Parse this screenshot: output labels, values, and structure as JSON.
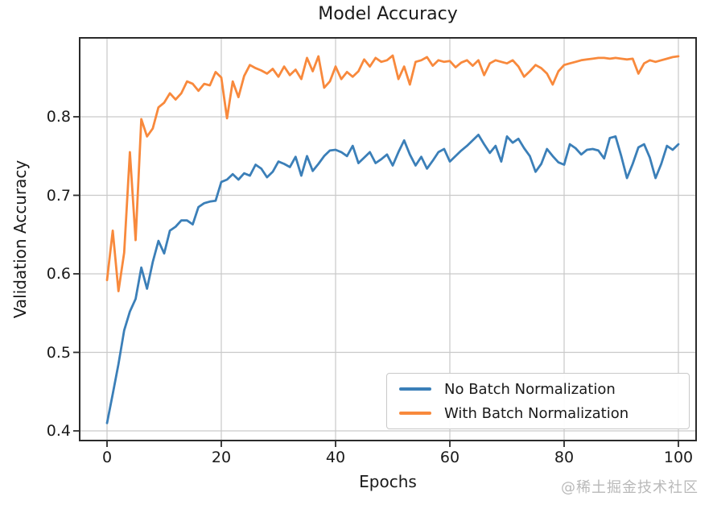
{
  "watermark": "@稀土掘金技术社区",
  "chart_data": {
    "type": "line",
    "title": "Model Accuracy",
    "xlabel": "Epochs",
    "ylabel": "Validation Accuracy",
    "x_ticks": [
      0,
      20,
      40,
      60,
      80,
      100
    ],
    "x_tick_labels": [
      "0",
      "20",
      "40",
      "60",
      "80",
      "100"
    ],
    "y_ticks": [
      0.8,
      0.7,
      0.6,
      0.5,
      0.4
    ],
    "y_tick_labels": [
      "0.8",
      "0.7",
      "0.6",
      "0.5",
      "0.4"
    ],
    "xlim": [
      -4.9,
      103.2
    ],
    "ylim": [
      0.387,
      0.902
    ],
    "grid": true,
    "legend_position": "lower right",
    "colors": {
      "grid": "#c9c9c9",
      "spine": "#2b2b2b",
      "text": "#1a1a1a",
      "watermark": "#b9b9b9"
    },
    "x": [
      0,
      1,
      2,
      3,
      4,
      5,
      6,
      7,
      8,
      9,
      10,
      11,
      12,
      13,
      14,
      15,
      16,
      17,
      18,
      19,
      20,
      21,
      22,
      23,
      24,
      25,
      26,
      27,
      28,
      29,
      30,
      31,
      32,
      33,
      34,
      35,
      36,
      37,
      38,
      39,
      40,
      41,
      42,
      43,
      44,
      45,
      46,
      47,
      48,
      49,
      50,
      51,
      52,
      53,
      54,
      55,
      56,
      57,
      58,
      59,
      60,
      61,
      62,
      63,
      64,
      65,
      66,
      67,
      68,
      69,
      70,
      71,
      72,
      73,
      74,
      75,
      76,
      77,
      78,
      79,
      80,
      81,
      82,
      83,
      84,
      85,
      86,
      87,
      88,
      89,
      90,
      91,
      92,
      93,
      94,
      95,
      96,
      97,
      98,
      99,
      100
    ],
    "series": [
      {
        "name": "No Batch Normalization",
        "color": "#3b7fb8",
        "values": [
          0.41,
          0.447,
          0.485,
          0.528,
          0.552,
          0.568,
          0.608,
          0.581,
          0.615,
          0.642,
          0.626,
          0.655,
          0.66,
          0.668,
          0.668,
          0.663,
          0.685,
          0.69,
          0.692,
          0.693,
          0.717,
          0.72,
          0.727,
          0.72,
          0.728,
          0.725,
          0.739,
          0.734,
          0.723,
          0.73,
          0.743,
          0.74,
          0.736,
          0.749,
          0.725,
          0.75,
          0.731,
          0.74,
          0.75,
          0.757,
          0.758,
          0.755,
          0.75,
          0.763,
          0.741,
          0.748,
          0.755,
          0.741,
          0.746,
          0.752,
          0.738,
          0.755,
          0.77,
          0.752,
          0.738,
          0.749,
          0.734,
          0.744,
          0.755,
          0.759,
          0.743,
          0.75,
          0.757,
          0.763,
          0.77,
          0.777,
          0.765,
          0.754,
          0.763,
          0.743,
          0.775,
          0.767,
          0.772,
          0.76,
          0.75,
          0.73,
          0.74,
          0.759,
          0.75,
          0.742,
          0.739,
          0.765,
          0.76,
          0.752,
          0.758,
          0.759,
          0.757,
          0.747,
          0.773,
          0.775,
          0.75,
          0.722,
          0.74,
          0.761,
          0.765,
          0.748,
          0.722,
          0.74,
          0.763,
          0.758,
          0.765
        ]
      },
      {
        "name": "With Batch Normalization",
        "color": "#f8893c",
        "values": [
          0.592,
          0.655,
          0.578,
          0.627,
          0.755,
          0.643,
          0.797,
          0.775,
          0.785,
          0.812,
          0.818,
          0.83,
          0.822,
          0.83,
          0.845,
          0.842,
          0.833,
          0.842,
          0.84,
          0.857,
          0.85,
          0.798,
          0.845,
          0.825,
          0.852,
          0.866,
          0.862,
          0.859,
          0.855,
          0.861,
          0.851,
          0.864,
          0.853,
          0.86,
          0.848,
          0.875,
          0.858,
          0.877,
          0.837,
          0.845,
          0.864,
          0.848,
          0.857,
          0.851,
          0.858,
          0.873,
          0.864,
          0.875,
          0.87,
          0.872,
          0.878,
          0.848,
          0.864,
          0.841,
          0.87,
          0.872,
          0.876,
          0.865,
          0.872,
          0.87,
          0.871,
          0.863,
          0.869,
          0.872,
          0.865,
          0.872,
          0.853,
          0.868,
          0.872,
          0.87,
          0.868,
          0.872,
          0.864,
          0.851,
          0.858,
          0.866,
          0.862,
          0.855,
          0.841,
          0.858,
          0.866,
          0.868,
          0.87,
          0.872,
          0.873,
          0.874,
          0.875,
          0.875,
          0.874,
          0.875,
          0.874,
          0.873,
          0.874,
          0.855,
          0.868,
          0.872,
          0.87,
          0.872,
          0.874,
          0.876,
          0.877
        ]
      }
    ]
  }
}
